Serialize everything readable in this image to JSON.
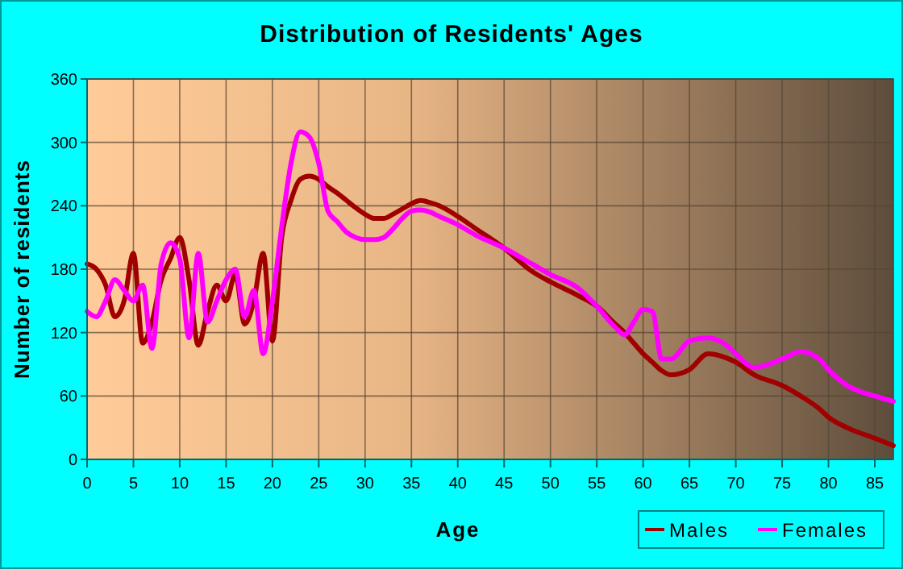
{
  "chart_data": {
    "type": "line",
    "title": "Distribution of Residents' Ages",
    "xlabel": "Age",
    "ylabel": "Number of residents",
    "xlim": [
      0,
      87
    ],
    "ylim": [
      0,
      360
    ],
    "xticks": [
      0,
      5,
      10,
      15,
      20,
      25,
      30,
      35,
      40,
      45,
      50,
      55,
      60,
      65,
      70,
      75,
      80,
      85
    ],
    "yticks": [
      0,
      60,
      120,
      180,
      240,
      300,
      360
    ],
    "grid": true,
    "legend": "bottom right",
    "x": [
      0,
      1,
      2,
      3,
      4,
      5,
      6,
      7,
      8,
      9,
      10,
      11,
      12,
      13,
      14,
      15,
      16,
      17,
      18,
      19,
      20,
      21,
      22,
      23,
      24,
      25,
      26,
      27,
      28,
      29,
      30,
      31,
      32,
      33,
      34,
      35,
      36,
      37,
      38,
      40,
      42,
      45,
      48,
      50,
      53,
      55,
      57,
      58,
      59,
      60,
      61,
      62,
      63,
      65,
      67,
      69,
      70,
      72,
      75,
      77,
      79,
      80,
      82,
      85,
      87
    ],
    "series": [
      {
        "name": "Males",
        "color": "#a00000",
        "values": [
          185,
          180,
          165,
          135,
          150,
          195,
          110,
          130,
          170,
          190,
          210,
          170,
          108,
          140,
          165,
          150,
          175,
          128,
          150,
          195,
          112,
          210,
          245,
          265,
          268,
          265,
          258,
          252,
          245,
          238,
          232,
          228,
          228,
          232,
          237,
          242,
          245,
          243,
          240,
          230,
          218,
          200,
          178,
          168,
          155,
          145,
          128,
          120,
          110,
          100,
          92,
          84,
          80,
          85,
          100,
          96,
          92,
          80,
          70,
          60,
          48,
          40,
          30,
          20,
          13
        ]
      },
      {
        "name": "Females",
        "color": "#ff00ff",
        "values": [
          140,
          135,
          150,
          170,
          160,
          150,
          165,
          105,
          185,
          205,
          190,
          115,
          195,
          130,
          150,
          170,
          180,
          135,
          160,
          100,
          150,
          220,
          280,
          310,
          305,
          280,
          235,
          225,
          215,
          210,
          208,
          208,
          210,
          218,
          228,
          235,
          236,
          234,
          230,
          222,
          212,
          200,
          185,
          175,
          162,
          145,
          125,
          118,
          130,
          142,
          140,
          95,
          95,
          112,
          115,
          108,
          100,
          87,
          95,
          102,
          95,
          85,
          70,
          60,
          55
        ]
      }
    ]
  }
}
